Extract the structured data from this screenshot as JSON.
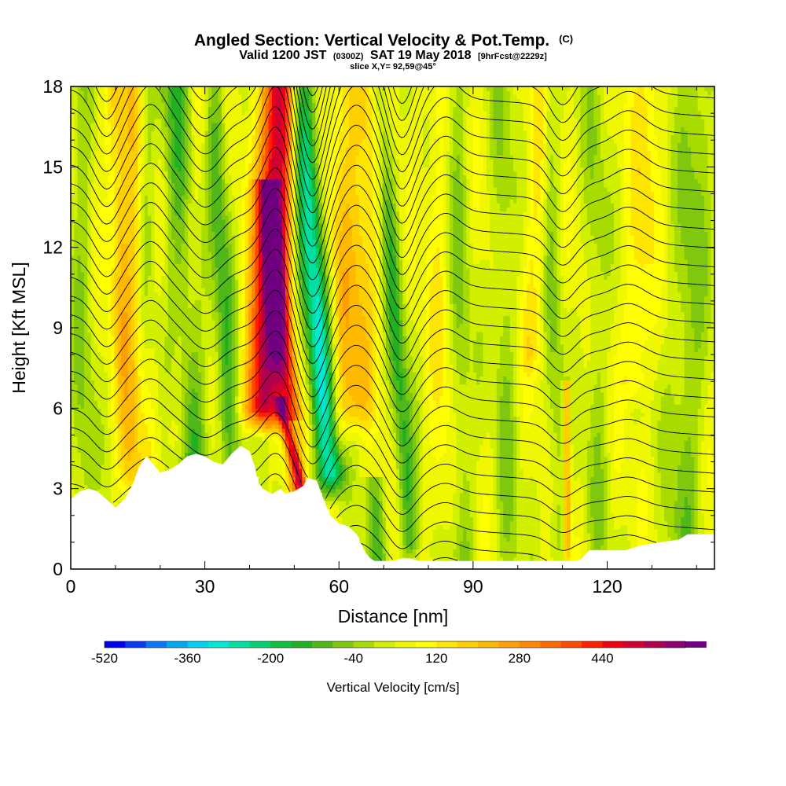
{
  "chart_data": {
    "type": "heatmap",
    "title": "Angled Section: Vertical Velocity & Pot.Temp.",
    "title_suffix": "(C)",
    "subtitle_line1_a": "Valid 1200 JST",
    "subtitle_line1_b": "(0300Z)",
    "subtitle_line1_c": "SAT 19 May 2018",
    "subtitle_line1_d": "[9hrFcst@2229z]",
    "subtitle_line2": "slice X,Y= 92,59@45°",
    "xlabel": "Distance [nm]",
    "ylabel": "Height [Kft MSL]",
    "xlim": [
      0,
      144
    ],
    "ylim": [
      0,
      18
    ],
    "x_ticks": [
      0,
      30,
      60,
      90,
      120
    ],
    "y_ticks": [
      0,
      3,
      6,
      9,
      12,
      15,
      18
    ],
    "x_tick_labels": [
      "0",
      "30",
      "60",
      "90",
      "120"
    ],
    "y_tick_labels": [
      "0",
      "3",
      "6",
      "9",
      "12",
      "15",
      "18"
    ],
    "colorbar": {
      "label": "Vertical Velocity [cm/s]",
      "min": -520,
      "max": 600,
      "step": 40,
      "tick_values": [
        -520,
        -360,
        -200,
        -40,
        120,
        280,
        440
      ],
      "tick_labels": [
        "-520",
        "-360",
        "-200",
        "-40",
        "120",
        "280",
        "440"
      ],
      "colors": [
        "#0000f0",
        "#0a3cf5",
        "#0a78f5",
        "#00a8f0",
        "#00d0f0",
        "#00e8d8",
        "#00e0a0",
        "#00d070",
        "#10c040",
        "#20b020",
        "#50b818",
        "#80c810",
        "#a8dc00",
        "#d0f000",
        "#f0f800",
        "#ffff00",
        "#ffe600",
        "#ffd000",
        "#ffba00",
        "#ffa000",
        "#ff8800",
        "#ff6a00",
        "#ff4a00",
        "#ff2000",
        "#f00010",
        "#d00030",
        "#b00050",
        "#900070",
        "#700080"
      ]
    },
    "terrain": [
      [
        0,
        2.6
      ],
      [
        2,
        2.9
      ],
      [
        4,
        3.0
      ],
      [
        6,
        2.9
      ],
      [
        8,
        2.6
      ],
      [
        10,
        2.3
      ],
      [
        12,
        2.6
      ],
      [
        14,
        3.2
      ],
      [
        15,
        3.7
      ],
      [
        16,
        4.0
      ],
      [
        17,
        4.2
      ],
      [
        18,
        4.0
      ],
      [
        19,
        3.8
      ],
      [
        20,
        3.6
      ],
      [
        22,
        3.7
      ],
      [
        24,
        3.9
      ],
      [
        26,
        4.2
      ],
      [
        28,
        4.3
      ],
      [
        30,
        4.2
      ],
      [
        32,
        4.0
      ],
      [
        34,
        3.9
      ],
      [
        36,
        4.3
      ],
      [
        38,
        4.6
      ],
      [
        40,
        4.4
      ],
      [
        41,
        3.9
      ],
      [
        42,
        3.2
      ],
      [
        43,
        3.0
      ],
      [
        45,
        2.8
      ],
      [
        47,
        3.0
      ],
      [
        48,
        2.8
      ],
      [
        50,
        2.9
      ],
      [
        52,
        3.1
      ],
      [
        53,
        3.4
      ],
      [
        55,
        3.3
      ],
      [
        57,
        2.4
      ],
      [
        58,
        2.0
      ],
      [
        60,
        1.7
      ],
      [
        62,
        1.6
      ],
      [
        64,
        1.3
      ],
      [
        65,
        0.9
      ],
      [
        66,
        0.6
      ],
      [
        67,
        0.4
      ],
      [
        68,
        0.3
      ],
      [
        70,
        0.3
      ],
      [
        72,
        0.3
      ],
      [
        74,
        0.4
      ],
      [
        76,
        0.4
      ],
      [
        78,
        0.3
      ],
      [
        80,
        0.3
      ],
      [
        85,
        0.3
      ],
      [
        90,
        0.3
      ],
      [
        95,
        0.3
      ],
      [
        100,
        0.3
      ],
      [
        105,
        0.3
      ],
      [
        110,
        0.3
      ],
      [
        112,
        0.3
      ],
      [
        114,
        0.35
      ],
      [
        116,
        0.7
      ],
      [
        120,
        0.7
      ],
      [
        124,
        0.7
      ],
      [
        128,
        0.9
      ],
      [
        132,
        1.0
      ],
      [
        136,
        1.1
      ],
      [
        138,
        1.3
      ],
      [
        142,
        1.3
      ],
      [
        144,
        1.3
      ]
    ],
    "updrafts": [
      {
        "x0": 43,
        "x1": 47,
        "z0": 6.0,
        "z1": 18,
        "peak": 500,
        "width": 4.0
      },
      {
        "x0": 51,
        "x1": 44,
        "z0": 3.0,
        "z1": 14,
        "peak": 300,
        "width": 2.5
      },
      {
        "x0": 52,
        "x1": 47,
        "z0": 3.0,
        "z1": 6,
        "peak": 250,
        "width": 1.2
      },
      {
        "x0": 13,
        "x1": 10,
        "z0": 3.5,
        "z1": 18,
        "peak": 140,
        "width": 2.5
      },
      {
        "x0": 16,
        "x1": 14,
        "z0": 4.0,
        "z1": 18,
        "peak": 120,
        "width": 2.5
      },
      {
        "x0": 24,
        "x1": 29,
        "z0": 5.0,
        "z1": 18,
        "peak": 60,
        "width": 3.0
      },
      {
        "x0": 64,
        "x1": 67,
        "z0": 6.0,
        "z1": 18,
        "peak": 140,
        "width": 4.0
      },
      {
        "x0": 60,
        "x1": 61,
        "z0": 5.0,
        "z1": 18,
        "peak": 100,
        "width": 3.0
      },
      {
        "x0": 111,
        "x1": 111,
        "z0": 1.0,
        "z1": 6.5,
        "peak": 220,
        "width": 0.8
      },
      {
        "x0": 83,
        "x1": 82,
        "z0": 2.0,
        "z1": 18,
        "peak": 60,
        "width": 3.0
      },
      {
        "x0": 126,
        "x1": 129,
        "z0": 7.0,
        "z1": 18,
        "peak": 90,
        "width": 3.0
      },
      {
        "x0": 103,
        "x1": 105,
        "z0": 8.0,
        "z1": 18,
        "peak": 80,
        "width": 2.5
      }
    ],
    "downdrafts": [
      {
        "x0": 58,
        "x1": 51,
        "z0": 3.5,
        "z1": 18,
        "peak": -330,
        "width": 3.0
      },
      {
        "x0": 54,
        "x1": 50,
        "z0": 2.5,
        "z1": 5,
        "peak": -150,
        "width": 2.0
      },
      {
        "x0": 76,
        "x1": 69,
        "z0": 1.0,
        "z1": 18,
        "peak": -170,
        "width": 2.2
      },
      {
        "x0": 28,
        "x1": 23,
        "z0": 3.5,
        "z1": 18,
        "peak": -160,
        "width": 3.5
      },
      {
        "x0": 36,
        "x1": 32,
        "z0": 4.0,
        "z1": 18,
        "peak": -150,
        "width": 2.5
      },
      {
        "x0": 16,
        "x1": 17,
        "z0": 4.0,
        "z1": 18,
        "peak": -90,
        "width": 2.0
      },
      {
        "x0": 3,
        "x1": 2,
        "z0": 3.0,
        "z1": 18,
        "peak": -80,
        "width": 2.5
      },
      {
        "x0": 88,
        "x1": 86,
        "z0": 0.5,
        "z1": 18,
        "peak": -90,
        "width": 2.5
      },
      {
        "x0": 98,
        "x1": 96,
        "z0": 0.5,
        "z1": 18,
        "peak": -80,
        "width": 2.5
      },
      {
        "x0": 109,
        "x1": 107,
        "z0": 1.0,
        "z1": 18,
        "peak": -80,
        "width": 2.0
      },
      {
        "x0": 118,
        "x1": 117,
        "z0": 1.0,
        "z1": 18,
        "peak": -70,
        "width": 2.5
      },
      {
        "x0": 137,
        "x1": 140,
        "z0": 1.0,
        "z1": 18,
        "peak": -100,
        "width": 4.0
      },
      {
        "x0": 69,
        "x1": 68,
        "z0": 0.3,
        "z1": 3,
        "peak": -120,
        "width": 2.0
      }
    ],
    "contour_levels": [
      0.6,
      1.2,
      1.8,
      2.5,
      3.2,
      3.9,
      4.6,
      5.3,
      6.0,
      6.7,
      7.4,
      8.1,
      8.8,
      9.5,
      10.2,
      10.9,
      11.6,
      12.3,
      13.0,
      13.7,
      14.4,
      15.1,
      15.8,
      16.5,
      17.2,
      17.9,
      18.6,
      19.3,
      20.0,
      20.7,
      21.4
    ],
    "contour_waves": [
      {
        "x": 8,
        "amp": -1.2,
        "width": 4
      },
      {
        "x": 18,
        "amp": 0.8,
        "width": 4
      },
      {
        "x": 30,
        "amp": -1.0,
        "width": 5
      },
      {
        "x": 46,
        "amp": 1.6,
        "width": 4
      },
      {
        "x": 54,
        "amp": -2.0,
        "width": 4
      },
      {
        "x": 64,
        "amp": 1.2,
        "width": 5
      },
      {
        "x": 74,
        "amp": -1.6,
        "width": 4
      },
      {
        "x": 84,
        "amp": 0.5,
        "width": 4
      },
      {
        "x": 110,
        "amp": -0.9,
        "width": 4
      },
      {
        "x": 125,
        "amp": 0.5,
        "width": 5
      }
    ],
    "contour_tilt": 0.012
  }
}
